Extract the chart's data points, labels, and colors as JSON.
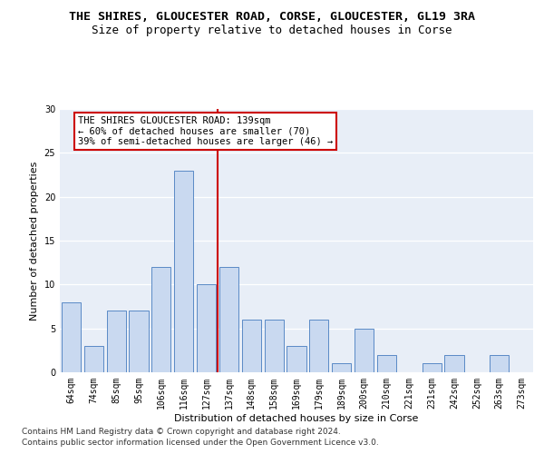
{
  "title": "THE SHIRES, GLOUCESTER ROAD, CORSE, GLOUCESTER, GL19 3RA",
  "subtitle": "Size of property relative to detached houses in Corse",
  "xlabel": "Distribution of detached houses by size in Corse",
  "ylabel": "Number of detached properties",
  "bin_labels": [
    "64sqm",
    "74sqm",
    "85sqm",
    "95sqm",
    "106sqm",
    "116sqm",
    "127sqm",
    "137sqm",
    "148sqm",
    "158sqm",
    "169sqm",
    "179sqm",
    "189sqm",
    "200sqm",
    "210sqm",
    "221sqm",
    "231sqm",
    "242sqm",
    "252sqm",
    "263sqm",
    "273sqm"
  ],
  "bar_values": [
    8,
    3,
    7,
    7,
    12,
    23,
    10,
    12,
    6,
    6,
    3,
    6,
    1,
    5,
    2,
    0,
    1,
    2,
    0,
    2,
    0
  ],
  "bar_color": "#c9d9f0",
  "bar_edge_color": "#5a8ac6",
  "vline_color": "#cc0000",
  "vline_bin_index": 7,
  "annotation_text": "THE SHIRES GLOUCESTER ROAD: 139sqm\n← 60% of detached houses are smaller (70)\n39% of semi-detached houses are larger (46) →",
  "annotation_box_color": "#ffffff",
  "annotation_box_edge": "#cc0000",
  "ylim": [
    0,
    30
  ],
  "yticks": [
    0,
    5,
    10,
    15,
    20,
    25,
    30
  ],
  "background_color": "#dde4f0",
  "plot_bg_color": "#e8eef7",
  "footer_line1": "Contains HM Land Registry data © Crown copyright and database right 2024.",
  "footer_line2": "Contains public sector information licensed under the Open Government Licence v3.0.",
  "title_fontsize": 9.5,
  "subtitle_fontsize": 9,
  "axis_label_fontsize": 8,
  "tick_fontsize": 7,
  "annotation_fontsize": 7.5,
  "footer_fontsize": 6.5
}
